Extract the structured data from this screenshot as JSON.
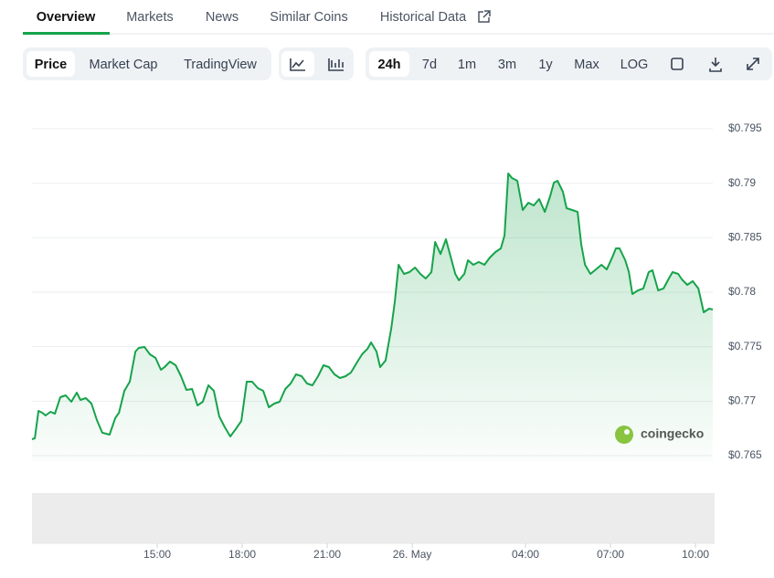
{
  "tabs": {
    "items": [
      "Overview",
      "Markets",
      "News",
      "Similar Coins",
      "Historical Data"
    ],
    "active": 0
  },
  "view_buttons": {
    "items": [
      "Price",
      "Market Cap",
      "TradingView"
    ],
    "active": 0
  },
  "range_buttons": {
    "items": [
      "24h",
      "7d",
      "1m",
      "3m",
      "1y",
      "Max",
      "LOG"
    ],
    "active": 0
  },
  "watermark": "coingecko",
  "chart_data": {
    "type": "line",
    "x": [
      10.58,
      10.68,
      10.81,
      10.94,
      11.06,
      11.23,
      11.39,
      11.58,
      11.77,
      11.97,
      12.16,
      12.29,
      12.48,
      12.68,
      12.87,
      13.06,
      13.32,
      13.52,
      13.65,
      13.84,
      14.03,
      14.23,
      14.35,
      14.55,
      14.74,
      14.94,
      15.13,
      15.26,
      15.45,
      15.65,
      15.84,
      16.03,
      16.23,
      16.42,
      16.61,
      16.81,
      17.0,
      17.19,
      17.39,
      17.58,
      17.77,
      17.97,
      18.16,
      18.35,
      18.55,
      18.74,
      18.94,
      19.13,
      19.32,
      19.52,
      19.71,
      19.9,
      20.1,
      20.29,
      20.48,
      20.68,
      20.87,
      21.06,
      21.26,
      21.45,
      21.65,
      21.84,
      22.03,
      22.23,
      22.42,
      22.55,
      22.74,
      22.87,
      23.06,
      23.26,
      23.39,
      23.52,
      23.71,
      23.9,
      24.1,
      24.29,
      24.48,
      24.68,
      24.81,
      25.0,
      25.19,
      25.39,
      25.52,
      25.65,
      25.84,
      25.97,
      26.16,
      26.35,
      26.55,
      26.74,
      26.94,
      27.13,
      27.26,
      27.39,
      27.52,
      27.71,
      27.9,
      28.1,
      28.29,
      28.48,
      28.68,
      28.87,
      29.0,
      29.13,
      29.32,
      29.45,
      29.65,
      29.84,
      29.97,
      30.1,
      30.29,
      30.48,
      30.68,
      30.87,
      31.06,
      31.19,
      31.32,
      31.52,
      31.65,
      31.77,
      31.97,
      32.16,
      32.35,
      32.48,
      32.68,
      32.87,
      33.06,
      33.19,
      33.39,
      33.52,
      33.71,
      33.9,
      34.1,
      34.29,
      34.48,
      34.61
    ],
    "series": [
      {
        "color": "#16a34a",
        "values": [
          0.76651,
          0.76659,
          0.76911,
          0.76894,
          0.76869,
          0.76902,
          0.76885,
          0.77036,
          0.77053,
          0.76994,
          0.77078,
          0.77011,
          0.77028,
          0.76978,
          0.76827,
          0.7671,
          0.76693,
          0.76844,
          0.76894,
          0.77095,
          0.77179,
          0.77455,
          0.77489,
          0.77497,
          0.7743,
          0.77397,
          0.77288,
          0.77313,
          0.77363,
          0.7733,
          0.77229,
          0.77103,
          0.77112,
          0.76961,
          0.76994,
          0.77145,
          0.77095,
          0.7686,
          0.7676,
          0.76676,
          0.76743,
          0.76818,
          0.77179,
          0.77179,
          0.7712,
          0.77095,
          0.76944,
          0.76978,
          0.76994,
          0.77112,
          0.77162,
          0.77246,
          0.77229,
          0.77162,
          0.77145,
          0.77229,
          0.7733,
          0.77313,
          0.77246,
          0.77212,
          0.77229,
          0.77263,
          0.77346,
          0.7743,
          0.7748,
          0.77539,
          0.77455,
          0.77313,
          0.77372,
          0.77665,
          0.77916,
          0.78251,
          0.78168,
          0.78184,
          0.78226,
          0.78168,
          0.78126,
          0.78184,
          0.78461,
          0.7835,
          0.78486,
          0.78293,
          0.78168,
          0.78109,
          0.78168,
          0.78293,
          0.78251,
          0.78277,
          0.78251,
          0.78318,
          0.78369,
          0.78402,
          0.7852,
          0.79089,
          0.79048,
          0.79022,
          0.78754,
          0.78821,
          0.78796,
          0.78855,
          0.78737,
          0.7888,
          0.79006,
          0.79022,
          0.78922,
          0.78771,
          0.78754,
          0.78737,
          0.78436,
          0.78251,
          0.78168,
          0.78209,
          0.78251,
          0.78209,
          0.78318,
          0.78402,
          0.78402,
          0.78293,
          0.78184,
          0.77983,
          0.78017,
          0.78034,
          0.78184,
          0.78201,
          0.78017,
          0.78034,
          0.78126,
          0.78184,
          0.78168,
          0.78117,
          0.78067,
          0.78101,
          0.78034,
          0.77816,
          0.77849,
          0.77841
        ]
      }
    ],
    "xlim": [
      10.58,
      34.61
    ],
    "xticks": [
      {
        "value": 15,
        "label": "15:00"
      },
      {
        "value": 18,
        "label": "18:00"
      },
      {
        "value": 21,
        "label": "21:00"
      },
      {
        "value": 24,
        "label": "26. May"
      },
      {
        "value": 28,
        "label": "04:00"
      },
      {
        "value": 31,
        "label": "07:00"
      },
      {
        "value": 34,
        "label": "10:00"
      }
    ],
    "ylim": [
      0.765,
      0.795
    ],
    "yticks": [
      {
        "value": 0.765,
        "label": "$0.765"
      },
      {
        "value": 0.77,
        "label": "$0.77"
      },
      {
        "value": 0.775,
        "label": "$0.775"
      },
      {
        "value": 0.78,
        "label": "$0.78"
      },
      {
        "value": 0.785,
        "label": "$0.785"
      },
      {
        "value": 0.79,
        "label": "$0.79"
      },
      {
        "value": 0.795,
        "label": "$0.795"
      }
    ],
    "grid": true
  }
}
